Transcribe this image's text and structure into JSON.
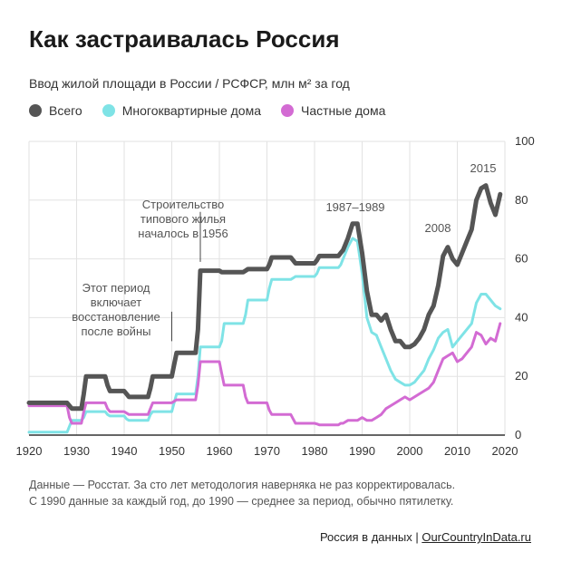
{
  "title": "Как застраивалась Россия",
  "subtitle": "Ввод жилой площади в России / РСФСР, млн м² за год",
  "legend": [
    {
      "label": "Всего",
      "color": "#555555"
    },
    {
      "label": "Многоквартирные дома",
      "color": "#7fe3e6"
    },
    {
      "label": "Частные дома",
      "color": "#d36bd3"
    }
  ],
  "note_line1": "Данные — Росстат. За сто лет методология наверняка не раз корректировалась.",
  "note_line2": "С 1990 данные за каждый год, до 1990 — среднее за период, обычно пятилетку.",
  "source_prefix": "Россия в данных | ",
  "source_link": "OurCountryInData.ru",
  "chart_data": {
    "type": "line",
    "xlim": [
      1920,
      2020
    ],
    "ylim": [
      0,
      100
    ],
    "x_ticks": [
      1920,
      1930,
      1940,
      1950,
      1960,
      1970,
      1980,
      1990,
      2000,
      2010,
      2020
    ],
    "y_ticks": [
      0,
      20,
      40,
      60,
      80,
      100
    ],
    "grid": true,
    "legend_position": "top-left",
    "series": [
      {
        "name": "Всего",
        "color": "#555555",
        "x": [
          1920,
          1928,
          1928.5,
          1929,
          1931,
          1931.5,
          1932,
          1936,
          1936.5,
          1937,
          1940,
          1940.5,
          1941,
          1945,
          1945.5,
          1946,
          1950,
          1950.5,
          1951,
          1955,
          1955.5,
          1956,
          1960,
          1960.5,
          1961,
          1965,
          1965.5,
          1966,
          1970,
          1970.5,
          1971,
          1975,
          1975.5,
          1976,
          1980,
          1980.5,
          1981,
          1985,
          1985.5,
          1986,
          1987,
          1988,
          1989,
          1990,
          1991,
          1992,
          1993,
          1994,
          1995,
          1996,
          1997,
          1998,
          1999,
          2000,
          2001,
          2002,
          2003,
          2004,
          2005,
          2006,
          2007,
          2008,
          2009,
          2010,
          2011,
          2012,
          2013,
          2014,
          2015,
          2016,
          2017,
          2018,
          2019
        ],
        "values": [
          11,
          11,
          10,
          9,
          9,
          14,
          20,
          20,
          17,
          15,
          15,
          14,
          13,
          13,
          16,
          20,
          20,
          24,
          28,
          28,
          36,
          56,
          56,
          55.5,
          55.5,
          55.5,
          56,
          56.5,
          56.5,
          58,
          60.5,
          60.5,
          59.5,
          58.5,
          58.5,
          59.5,
          61,
          61,
          62,
          63,
          67,
          72,
          72,
          62,
          49,
          41,
          41,
          39,
          41,
          36,
          32,
          32,
          30,
          30,
          31,
          33,
          36,
          41,
          44,
          51,
          61,
          64,
          60,
          58,
          62,
          66,
          70,
          80,
          84,
          85,
          79,
          75,
          82
        ]
      },
      {
        "name": "Многоквартирные дома",
        "color": "#7fe3e6",
        "x": [
          1920,
          1928,
          1928.5,
          1929,
          1931,
          1931.5,
          1932,
          1936,
          1936.5,
          1937,
          1940,
          1940.5,
          1941,
          1945,
          1945.5,
          1946,
          1950,
          1950.5,
          1951,
          1955,
          1955.5,
          1956,
          1960,
          1960.5,
          1961,
          1965,
          1965.5,
          1966,
          1970,
          1970.5,
          1971,
          1975,
          1975.5,
          1976,
          1980,
          1980.5,
          1981,
          1985,
          1985.5,
          1986,
          1987,
          1988,
          1989,
          1990,
          1991,
          1992,
          1993,
          1994,
          1995,
          1996,
          1997,
          1998,
          1999,
          2000,
          2001,
          2002,
          2003,
          2004,
          2005,
          2006,
          2007,
          2008,
          2009,
          2010,
          2011,
          2012,
          2013,
          2014,
          2015,
          2016,
          2017,
          2018,
          2019
        ],
        "values": [
          1,
          1,
          3,
          5,
          5,
          6,
          8,
          8,
          7,
          6.5,
          6.5,
          5.5,
          5,
          5,
          7,
          8,
          8,
          11,
          14,
          14,
          20,
          30,
          30,
          32,
          38,
          38,
          41,
          46,
          46,
          50,
          53,
          53,
          53.5,
          54,
          54,
          55,
          57,
          57,
          58,
          60,
          64,
          67,
          66,
          55,
          40,
          35,
          34,
          30,
          26,
          22,
          19,
          18,
          17,
          17,
          18,
          20,
          22,
          26,
          29,
          33,
          35,
          36,
          30,
          32,
          34,
          36,
          38,
          45,
          48,
          48,
          46,
          44,
          43
        ]
      },
      {
        "name": "Частные дома",
        "color": "#d36bd3",
        "x": [
          1920,
          1928,
          1928.5,
          1929,
          1931,
          1931.5,
          1932,
          1936,
          1936.5,
          1937,
          1940,
          1940.5,
          1941,
          1945,
          1945.5,
          1946,
          1950,
          1950.5,
          1951,
          1955,
          1955.5,
          1956,
          1960,
          1960.5,
          1961,
          1965,
          1965.5,
          1966,
          1970,
          1970.5,
          1971,
          1975,
          1975.5,
          1976,
          1980,
          1980.5,
          1981,
          1985,
          1985.5,
          1986,
          1987,
          1988,
          1989,
          1990,
          1991,
          1992,
          1993,
          1994,
          1995,
          1996,
          1997,
          1998,
          1999,
          2000,
          2001,
          2002,
          2003,
          2004,
          2005,
          2006,
          2007,
          2008,
          2009,
          2010,
          2011,
          2012,
          2013,
          2014,
          2015,
          2016,
          2017,
          2018,
          2019
        ],
        "values": [
          10,
          10,
          6,
          4,
          4,
          8,
          11,
          11,
          9,
          8,
          8,
          7.5,
          7,
          7,
          9,
          11,
          11,
          11.5,
          12,
          12,
          17,
          25,
          25,
          21,
          17,
          17,
          13,
          11,
          11,
          8.5,
          7,
          7,
          5.5,
          4,
          4,
          3.8,
          3.5,
          3.5,
          4,
          4,
          5,
          5,
          5,
          6,
          5,
          5,
          6,
          7,
          9,
          10,
          11,
          12,
          13,
          12,
          13,
          14,
          15,
          16,
          18,
          22,
          26,
          27,
          28,
          25,
          26,
          28,
          30,
          35,
          34,
          31,
          33,
          32,
          38
        ]
      }
    ],
    "annotations": [
      {
        "x": 1956,
        "lines": [
          "Строительство",
          "типового жилья",
          "началось в 1956"
        ]
      },
      {
        "x": 1950,
        "lines": [
          "Этот период",
          "включает",
          "восстановление",
          "после войны"
        ]
      },
      {
        "x": 1988,
        "lines": [
          "1987–1989"
        ]
      },
      {
        "x": 2008,
        "lines": [
          "2008"
        ]
      },
      {
        "x": 2015,
        "lines": [
          "2015"
        ]
      }
    ]
  }
}
